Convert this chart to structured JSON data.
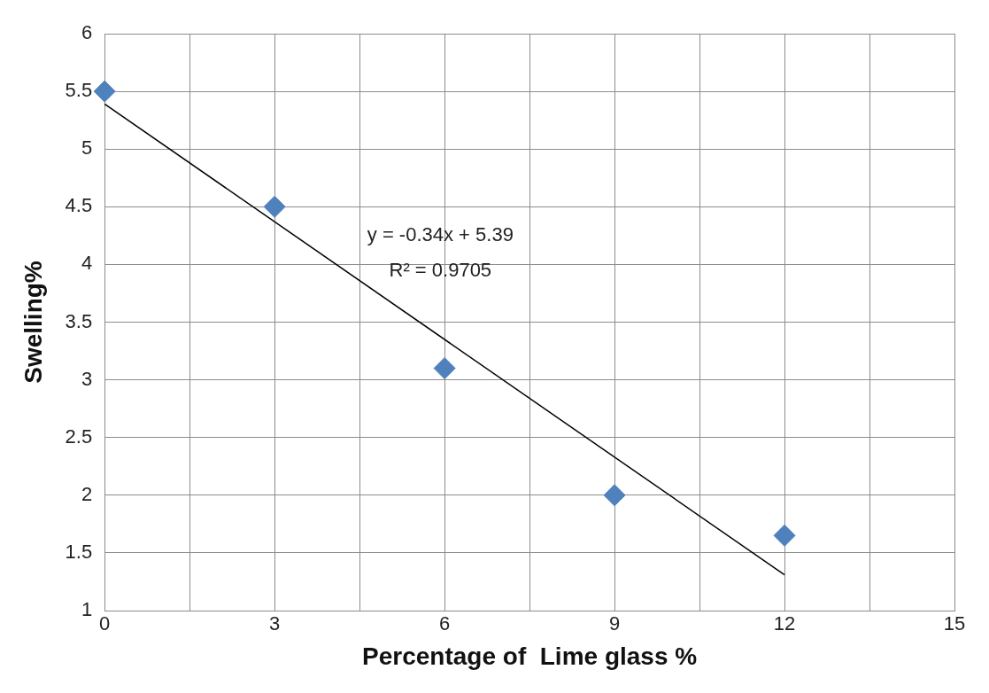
{
  "chart_data": {
    "type": "scatter",
    "xlabel": "Percentage of  Lime glass %",
    "ylabel": "Swelling%",
    "series": [
      {
        "name": null,
        "color": "#4f81bd",
        "x": [
          0,
          3,
          6,
          9,
          12
        ],
        "values": [
          5.5,
          4.5,
          3.1,
          2.0,
          1.65
        ],
        "marker": "diamond"
      },
      {
        "name": null,
        "type": "line",
        "color": "#000000",
        "x": [
          0,
          12
        ],
        "values": [
          5.39,
          1.31
        ],
        "marker": "none",
        "line_style": "solid"
      }
    ],
    "xlim": [
      0,
      15
    ],
    "xticks": [
      0,
      {
        "value": 1.5,
        "label": null
      },
      3,
      {
        "value": 4.5,
        "label": null
      },
      6,
      {
        "value": 7.5,
        "label": null
      },
      9,
      {
        "value": 10.5,
        "label": null
      },
      12,
      {
        "value": 13.5,
        "label": null
      },
      15
    ],
    "ylim": [
      1,
      6
    ],
    "yticks": [
      1,
      1.5,
      2,
      2.5,
      3,
      3.5,
      4,
      4.5,
      5,
      5.5,
      6
    ],
    "grid": true,
    "legend": false,
    "annotations": [
      "y = -0.34x + 5.39",
      "R² = 0.9705"
    ]
  }
}
